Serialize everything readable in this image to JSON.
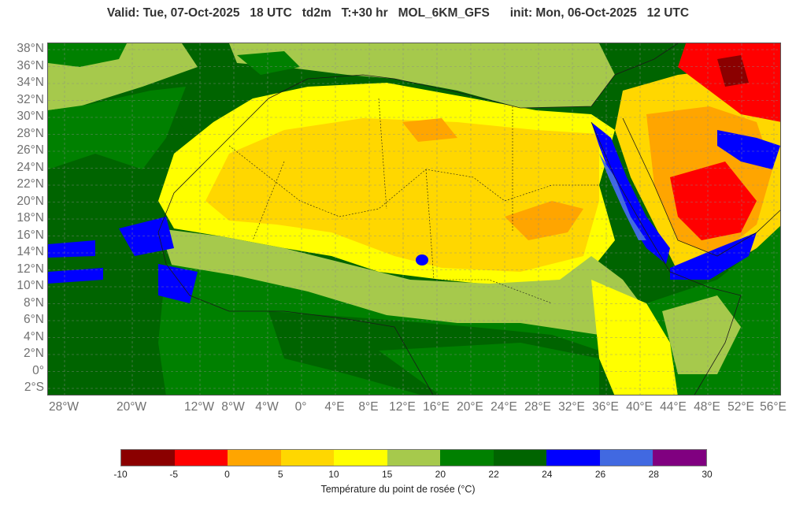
{
  "header": {
    "title": "Valid: Tue, 07-Oct-2025   18 UTC   td2m   T:+30 hr   MOL_6KM_GFS      init: Mon, 06-Oct-2025   12 UTC"
  },
  "map": {
    "lat_labels": [
      "38°N",
      "36°N",
      "34°N",
      "32°N",
      "30°N",
      "28°N",
      "26°N",
      "24°N",
      "22°N",
      "20°N",
      "18°N",
      "16°N",
      "14°N",
      "12°N",
      "10°N",
      "8°N",
      "6°N",
      "4°N",
      "2°N",
      "0°",
      "2°S"
    ],
    "lon_labels": [
      "28°W",
      "20°W",
      "12°W",
      "8°W",
      "4°W",
      "0°",
      "4°E",
      "8°E",
      "12°E",
      "16°E",
      "20°E",
      "24°E",
      "28°E",
      "32°E",
      "36°E",
      "40°E",
      "44°E",
      "48°E",
      "52°E",
      "56°E"
    ],
    "colors": {
      "ocean_deep": "#006400",
      "ocean": "#008000",
      "land_15_20": "#a6c94c",
      "land_10_15": "#ffff00",
      "land_5_10": "#ffd700",
      "land_0_5": "#ffa500",
      "land_neg": "#ff0000",
      "water_24_26": "#0000ff",
      "water_26_28": "#4169e1",
      "border": "#1a1a1a"
    }
  },
  "colorbar": {
    "title": "Température du point de rosée (°C)",
    "ticks": [
      "-10",
      "-5",
      "0",
      "5",
      "10",
      "15",
      "20",
      "22",
      "24",
      "26",
      "28",
      "30"
    ],
    "colors": [
      "#8b0000",
      "#ff0000",
      "#ffa500",
      "#ffd700",
      "#ffff00",
      "#a6c94c",
      "#008000",
      "#006400",
      "#0000ff",
      "#4169e1",
      "#800080"
    ]
  }
}
